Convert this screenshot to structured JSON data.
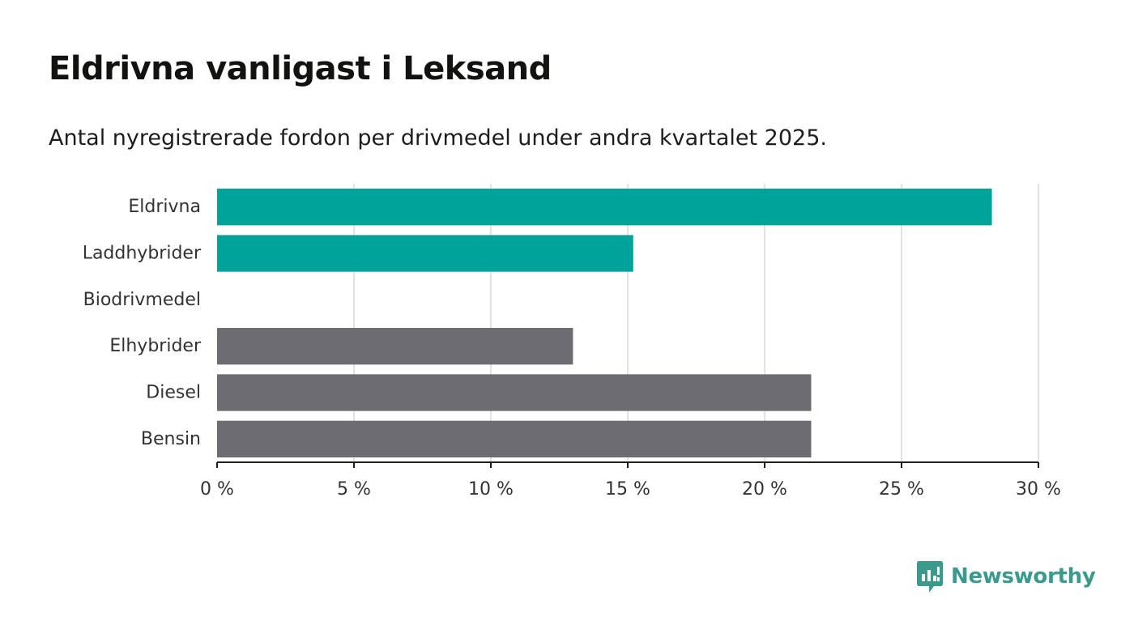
{
  "title": "Eldrivna vanligast i Leksand",
  "subtitle": "Antal nyregistrerade fordon per drivmedel under andra kvartalet 2025.",
  "brand": {
    "name": "Newsworthy",
    "color": "#3a9a8c"
  },
  "colors": {
    "highlight": "#00a39a",
    "default": "#6d6c72",
    "grid": "#d8d8d8",
    "axis": "#1d1d1b"
  },
  "chart_data": {
    "type": "bar",
    "orientation": "horizontal",
    "categories": [
      "Eldrivna",
      "Laddhybrider",
      "Biodrivmedel",
      "Elhybrider",
      "Diesel",
      "Bensin"
    ],
    "values": [
      28.3,
      15.2,
      0,
      13.0,
      21.7,
      21.7
    ],
    "bar_colors": [
      "#00a39a",
      "#00a39a",
      "#6d6c72",
      "#6d6c72",
      "#6d6c72",
      "#6d6c72"
    ],
    "xlim": [
      0,
      30
    ],
    "xticks": [
      0,
      5,
      10,
      15,
      20,
      25,
      30
    ],
    "xtick_labels": [
      "0 %",
      "5 %",
      "10 %",
      "15 %",
      "20 %",
      "25 %",
      "30 %"
    ],
    "xlabel": "",
    "ylabel": "",
    "grid": "vertical",
    "legend": "none"
  }
}
